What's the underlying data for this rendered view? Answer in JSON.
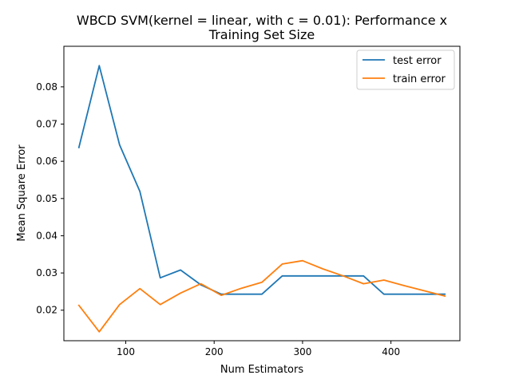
{
  "chart_data": {
    "type": "line",
    "title_lines": [
      "WBCD SVM(kernel = linear, with c = 0.01): Performance x",
      "Training Set Size"
    ],
    "xlabel": "Num Estimators",
    "ylabel": "Mean Square Error",
    "xlim": [
      30,
      478
    ],
    "ylim": [
      0.0118,
      0.0909
    ],
    "xticks": [
      100,
      200,
      300,
      400
    ],
    "yticks": [
      0.02,
      0.03,
      0.04,
      0.05,
      0.06,
      0.07,
      0.08
    ],
    "xtick_labels": [
      "100",
      "200",
      "300",
      "400"
    ],
    "ytick_labels": [
      "0.02",
      "0.03",
      "0.04",
      "0.05",
      "0.06",
      "0.07",
      "0.08"
    ],
    "grid": false,
    "legend_position": "top-right",
    "x": [
      47,
      70,
      93,
      116,
      139,
      162,
      185,
      208,
      231,
      254,
      277,
      300,
      323,
      346,
      369,
      392,
      415,
      438,
      461
    ],
    "series": [
      {
        "name": "test error",
        "color": "#1f77b4",
        "values": [
          0.0637,
          0.0857,
          0.0644,
          0.0519,
          0.0287,
          0.0308,
          0.0268,
          0.0243,
          0.0243,
          0.0243,
          0.0292,
          0.0292,
          0.0292,
          0.0292,
          0.0292,
          0.0243,
          0.0243,
          0.0243,
          0.0243
        ]
      },
      {
        "name": "train error",
        "color": "#ff7f0e",
        "values": [
          0.0213,
          0.0142,
          0.0215,
          0.0258,
          0.0215,
          0.0246,
          0.0271,
          0.024,
          0.0259,
          0.0275,
          0.0324,
          0.0333,
          0.0311,
          0.0292,
          0.0271,
          0.0281,
          0.0266,
          0.0252,
          0.0238
        ]
      }
    ]
  }
}
